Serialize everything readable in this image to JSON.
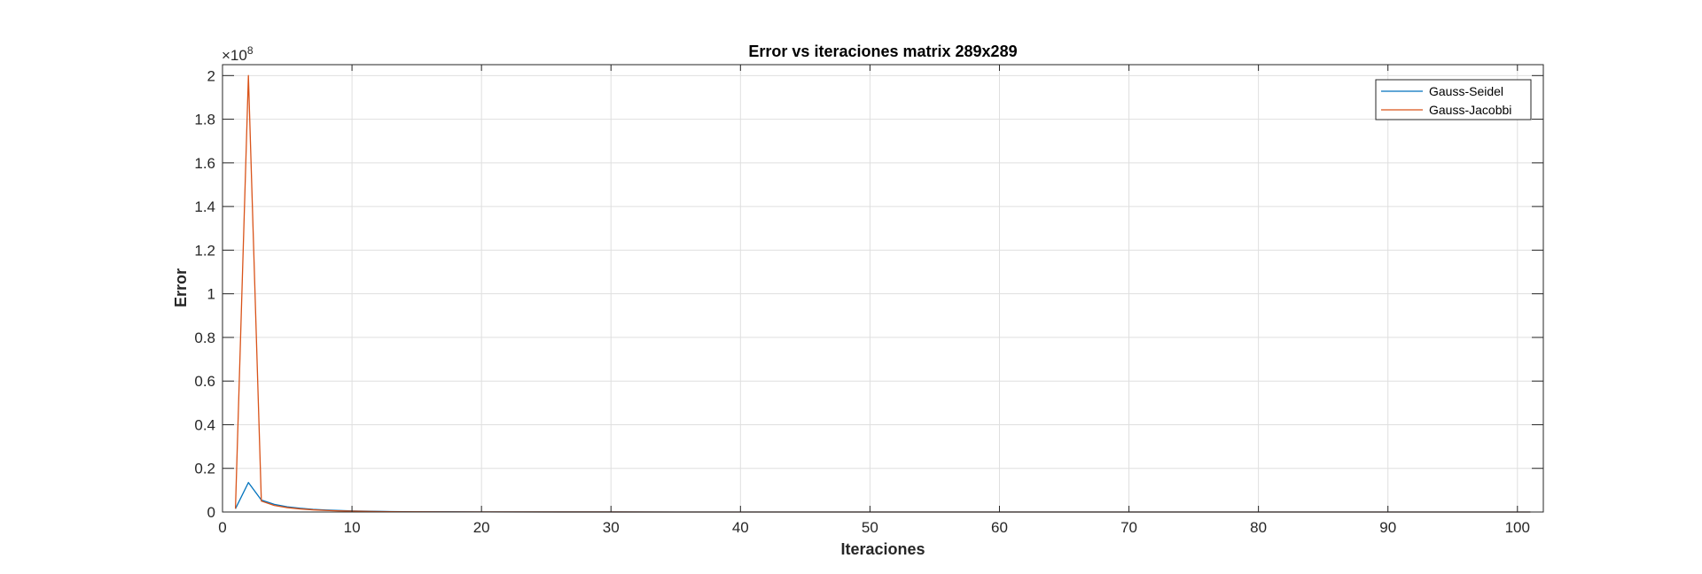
{
  "chart_data": {
    "type": "line",
    "title": "Error vs iteraciones matrix 289x289",
    "xlabel": "Iteraciones",
    "ylabel": "Error",
    "y_exponent": {
      "base": "×10",
      "power": "8"
    },
    "xlim": [
      0,
      102
    ],
    "ylim": [
      0,
      2.05
    ],
    "xticks": [
      0,
      10,
      20,
      30,
      40,
      50,
      60,
      70,
      80,
      90,
      100
    ],
    "yticks": [
      0,
      0.2,
      0.4,
      0.6,
      0.8,
      1,
      1.2,
      1.4,
      1.6,
      1.8,
      2
    ],
    "grid": true,
    "legend_position": "top-right",
    "x": [
      1,
      2,
      3,
      4,
      5,
      6,
      7,
      8,
      9,
      10,
      11,
      12,
      13,
      14,
      15,
      20,
      30,
      40,
      50,
      60,
      70,
      80,
      90,
      100,
      101
    ],
    "series": [
      {
        "name": "Gauss-Seidel",
        "color": "#0072BD",
        "values": [
          0.015,
          0.135,
          0.055,
          0.035,
          0.024,
          0.017,
          0.012,
          0.009,
          0.007,
          0.005,
          0.004,
          0.003,
          0.002,
          0.0015,
          0.001,
          0.0005,
          0.0002,
          0.0001,
          0.0001,
          0,
          0,
          0,
          0,
          0,
          0
        ]
      },
      {
        "name": "Gauss-Jacobbi",
        "color": "#D95319",
        "values": [
          0.015,
          2.0,
          0.05,
          0.03,
          0.02,
          0.014,
          0.01,
          0.007,
          0.005,
          0.004,
          0.003,
          0.002,
          0.0015,
          0.001,
          0.0008,
          0.0004,
          0.0002,
          0.0001,
          0.0001,
          0,
          0,
          0,
          0,
          0,
          0
        ]
      }
    ]
  }
}
